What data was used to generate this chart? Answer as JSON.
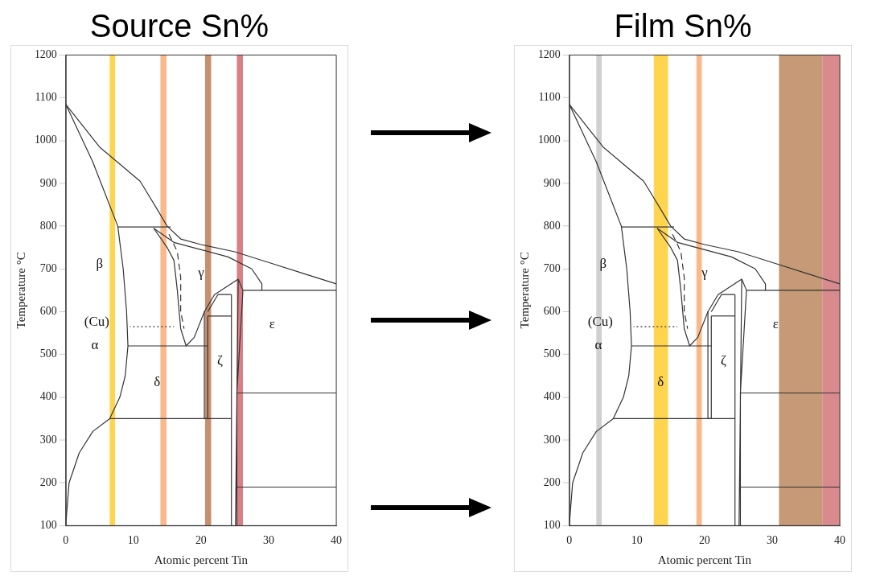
{
  "chart_data": [
    {
      "type": "line",
      "title": "Source Sn%",
      "xlabel": "Atomic percent Tin",
      "ylabel": "Temperature °C",
      "xlim": [
        0,
        40
      ],
      "xticks": [
        0,
        10,
        20,
        30,
        40
      ],
      "ylim": [
        100,
        1200
      ],
      "yticks": [
        100,
        200,
        300,
        400,
        500,
        600,
        700,
        800,
        900,
        1000,
        1100,
        1200
      ],
      "grid": false,
      "legend": false,
      "marker": "none",
      "series": [
        {
          "color": "#333333",
          "x": [
            0,
            5,
            8,
            11,
            13.5,
            15,
            17,
            20,
            25,
            30,
            35,
            40
          ],
          "values": [
            1085,
            985,
            945,
            905,
            840,
            800,
            770,
            757,
            740,
            715,
            690,
            665
          ]
        },
        {
          "color": "#333333",
          "x": [
            0,
            4,
            7.7,
            8.5,
            9,
            9.2,
            8.8,
            8,
            6.5,
            4,
            2,
            0.5,
            0
          ],
          "values": [
            1085,
            950,
            800,
            700,
            600,
            520,
            450,
            400,
            350,
            320,
            270,
            200,
            100
          ]
        },
        {
          "color": "#333333",
          "x": [
            7.7,
            15.5
          ],
          "values": [
            798,
            798
          ]
        },
        {
          "color": "#333333",
          "x": [
            13,
            15,
            16,
            16.5,
            17,
            17.8,
            19,
            20.5,
            22,
            25.5
          ],
          "values": [
            795,
            750,
            720,
            650,
            560,
            520,
            540,
            600,
            640,
            676
          ]
        },
        {
          "color": "#333333",
          "x": [
            13,
            16,
            20,
            24,
            27.5,
            29,
            29
          ],
          "values": [
            795,
            762,
            745,
            728,
            700,
            665,
            650
          ]
        },
        {
          "color": "#333333",
          "line_style": "dashed",
          "x": [
            15,
            16.5,
            17,
            17,
            17.5
          ],
          "values": [
            790,
            740,
            680,
            600,
            560
          ]
        },
        {
          "color": "#333333",
          "line_style": "dotted",
          "x": [
            9.5,
            16
          ],
          "values": [
            565,
            565
          ]
        },
        {
          "color": "#333333",
          "x": [
            9.2,
            21
          ],
          "values": [
            520,
            520
          ]
        },
        {
          "color": "#333333",
          "x": [
            6.5,
            24.5
          ],
          "values": [
            350,
            350
          ]
        },
        {
          "color": "#333333",
          "x": [
            20.5,
            20.5,
            21,
            21
          ],
          "values": [
            600,
            350,
            350,
            590
          ]
        },
        {
          "color": "#333333",
          "x": [
            21,
            22.5,
            24.5
          ],
          "values": [
            600,
            640,
            640
          ]
        },
        {
          "color": "#333333",
          "x": [
            21,
            24.5
          ],
          "values": [
            590,
            590
          ]
        },
        {
          "color": "#333333",
          "x": [
            24.5,
            24.5
          ],
          "values": [
            100,
            640
          ]
        },
        {
          "color": "#333333",
          "x": [
            25.1,
            25.5,
            26.2,
            25.3,
            25.3
          ],
          "values": [
            100,
            676,
            650,
            410,
            100
          ]
        },
        {
          "color": "#333333",
          "x": [
            26.2,
            40
          ],
          "values": [
            650,
            650
          ]
        },
        {
          "color": "#333333",
          "x": [
            25.3,
            40
          ],
          "values": [
            410,
            410
          ]
        },
        {
          "color": "#333333",
          "x": [
            25.3,
            40
          ],
          "values": [
            190,
            190
          ]
        }
      ],
      "bands": [
        {
          "axis": "x",
          "from": 6.5,
          "to": 7.3,
          "color": "#ffd54f"
        },
        {
          "axis": "x",
          "from": 14,
          "to": 14.9,
          "color": "#f9b98a"
        },
        {
          "axis": "x",
          "from": 20.6,
          "to": 21.5,
          "color": "#c69070"
        },
        {
          "axis": "x",
          "from": 25.3,
          "to": 26.2,
          "color": "#d98086"
        }
      ],
      "annotations": [
        "β",
        "γ",
        "(Cu)",
        "α",
        "δ",
        "ζ",
        "ε"
      ]
    },
    {
      "type": "line",
      "title": "Film Sn%",
      "xlabel": "Atomic percent Tin",
      "ylabel": "Temperature °C",
      "xlim": [
        0,
        40
      ],
      "xticks": [
        0,
        10,
        20,
        30,
        40
      ],
      "ylim": [
        100,
        1200
      ],
      "yticks": [
        100,
        200,
        300,
        400,
        500,
        600,
        700,
        800,
        900,
        1000,
        1100,
        1200
      ],
      "grid": false,
      "legend": false,
      "marker": "none",
      "series": [
        {
          "color": "#333333",
          "x": [
            0,
            5,
            8,
            11,
            13.5,
            15,
            17,
            20,
            25,
            30,
            35,
            40
          ],
          "values": [
            1085,
            985,
            945,
            905,
            840,
            800,
            770,
            757,
            740,
            715,
            690,
            665
          ]
        },
        {
          "color": "#333333",
          "x": [
            0,
            4,
            7.7,
            8.5,
            9,
            9.2,
            8.8,
            8,
            6.5,
            4,
            2,
            0.5,
            0
          ],
          "values": [
            1085,
            950,
            800,
            700,
            600,
            520,
            450,
            400,
            350,
            320,
            270,
            200,
            100
          ]
        },
        {
          "color": "#333333",
          "x": [
            7.7,
            15.5
          ],
          "values": [
            798,
            798
          ]
        },
        {
          "color": "#333333",
          "x": [
            13,
            15,
            16,
            16.5,
            17,
            17.8,
            19,
            20.5,
            22,
            25.5
          ],
          "values": [
            795,
            750,
            720,
            650,
            560,
            520,
            540,
            600,
            640,
            676
          ]
        },
        {
          "color": "#333333",
          "x": [
            13,
            16,
            20,
            24,
            27.5,
            29,
            29
          ],
          "values": [
            795,
            762,
            745,
            728,
            700,
            665,
            650
          ]
        },
        {
          "color": "#333333",
          "line_style": "dashed",
          "x": [
            15,
            16.5,
            17,
            17,
            17.5
          ],
          "values": [
            790,
            740,
            680,
            600,
            560
          ]
        },
        {
          "color": "#333333",
          "line_style": "dotted",
          "x": [
            9.5,
            16
          ],
          "values": [
            565,
            565
          ]
        },
        {
          "color": "#333333",
          "x": [
            9.2,
            21
          ],
          "values": [
            520,
            520
          ]
        },
        {
          "color": "#333333",
          "x": [
            6.5,
            24.5
          ],
          "values": [
            350,
            350
          ]
        },
        {
          "color": "#333333",
          "x": [
            20.5,
            20.5,
            21,
            21
          ],
          "values": [
            600,
            350,
            350,
            590
          ]
        },
        {
          "color": "#333333",
          "x": [
            21,
            22.5,
            24.5
          ],
          "values": [
            600,
            640,
            640
          ]
        },
        {
          "color": "#333333",
          "x": [
            21,
            24.5
          ],
          "values": [
            590,
            590
          ]
        },
        {
          "color": "#333333",
          "x": [
            24.5,
            24.5
          ],
          "values": [
            100,
            640
          ]
        },
        {
          "color": "#333333",
          "x": [
            25.1,
            25.5,
            26.2,
            25.3,
            25.3
          ],
          "values": [
            100,
            676,
            650,
            410,
            100
          ]
        },
        {
          "color": "#333333",
          "x": [
            26.2,
            40
          ],
          "values": [
            650,
            650
          ]
        },
        {
          "color": "#333333",
          "x": [
            25.3,
            40
          ],
          "values": [
            410,
            410
          ]
        },
        {
          "color": "#333333",
          "x": [
            25.3,
            40
          ],
          "values": [
            190,
            190
          ]
        }
      ],
      "bands": [
        {
          "axis": "x",
          "from": 4,
          "to": 4.8,
          "color": "#d0d0d0"
        },
        {
          "axis": "x",
          "from": 12.5,
          "to": 14.6,
          "color": "#ffd54f"
        },
        {
          "axis": "x",
          "from": 18.8,
          "to": 19.6,
          "color": "#f9b98a"
        },
        {
          "axis": "x",
          "from": 31,
          "to": 37.4,
          "color": "#c69a76"
        },
        {
          "axis": "x",
          "from": 37.4,
          "to": 40,
          "color": "#d98a8c"
        }
      ],
      "annotations": [
        "β",
        "γ",
        "(Cu)",
        "α",
        "δ",
        "ζ",
        "ε"
      ]
    }
  ]
}
